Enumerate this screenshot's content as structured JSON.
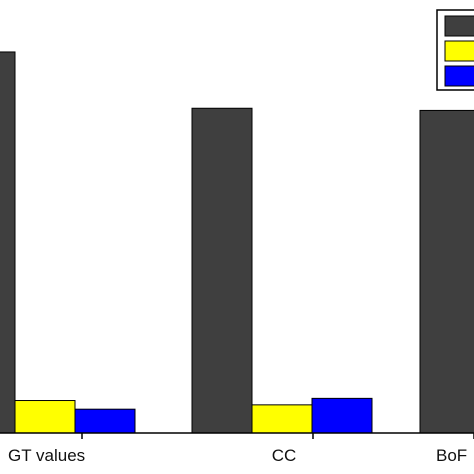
{
  "chart_data": {
    "type": "bar",
    "categories": [
      "GT values",
      "CC",
      "BoF"
    ],
    "series": [
      {
        "color": "#3f3f3f",
        "values": [
          0.88,
          0.75,
          0.745
        ]
      },
      {
        "color": "#ffff00",
        "values": [
          0.075,
          0.065,
          0.0
        ]
      },
      {
        "color": "#0000ff",
        "values": [
          0.055,
          0.08,
          0.0
        ]
      }
    ],
    "ylim": [
      0,
      1
    ],
    "grid": false,
    "legend": "top-right"
  }
}
